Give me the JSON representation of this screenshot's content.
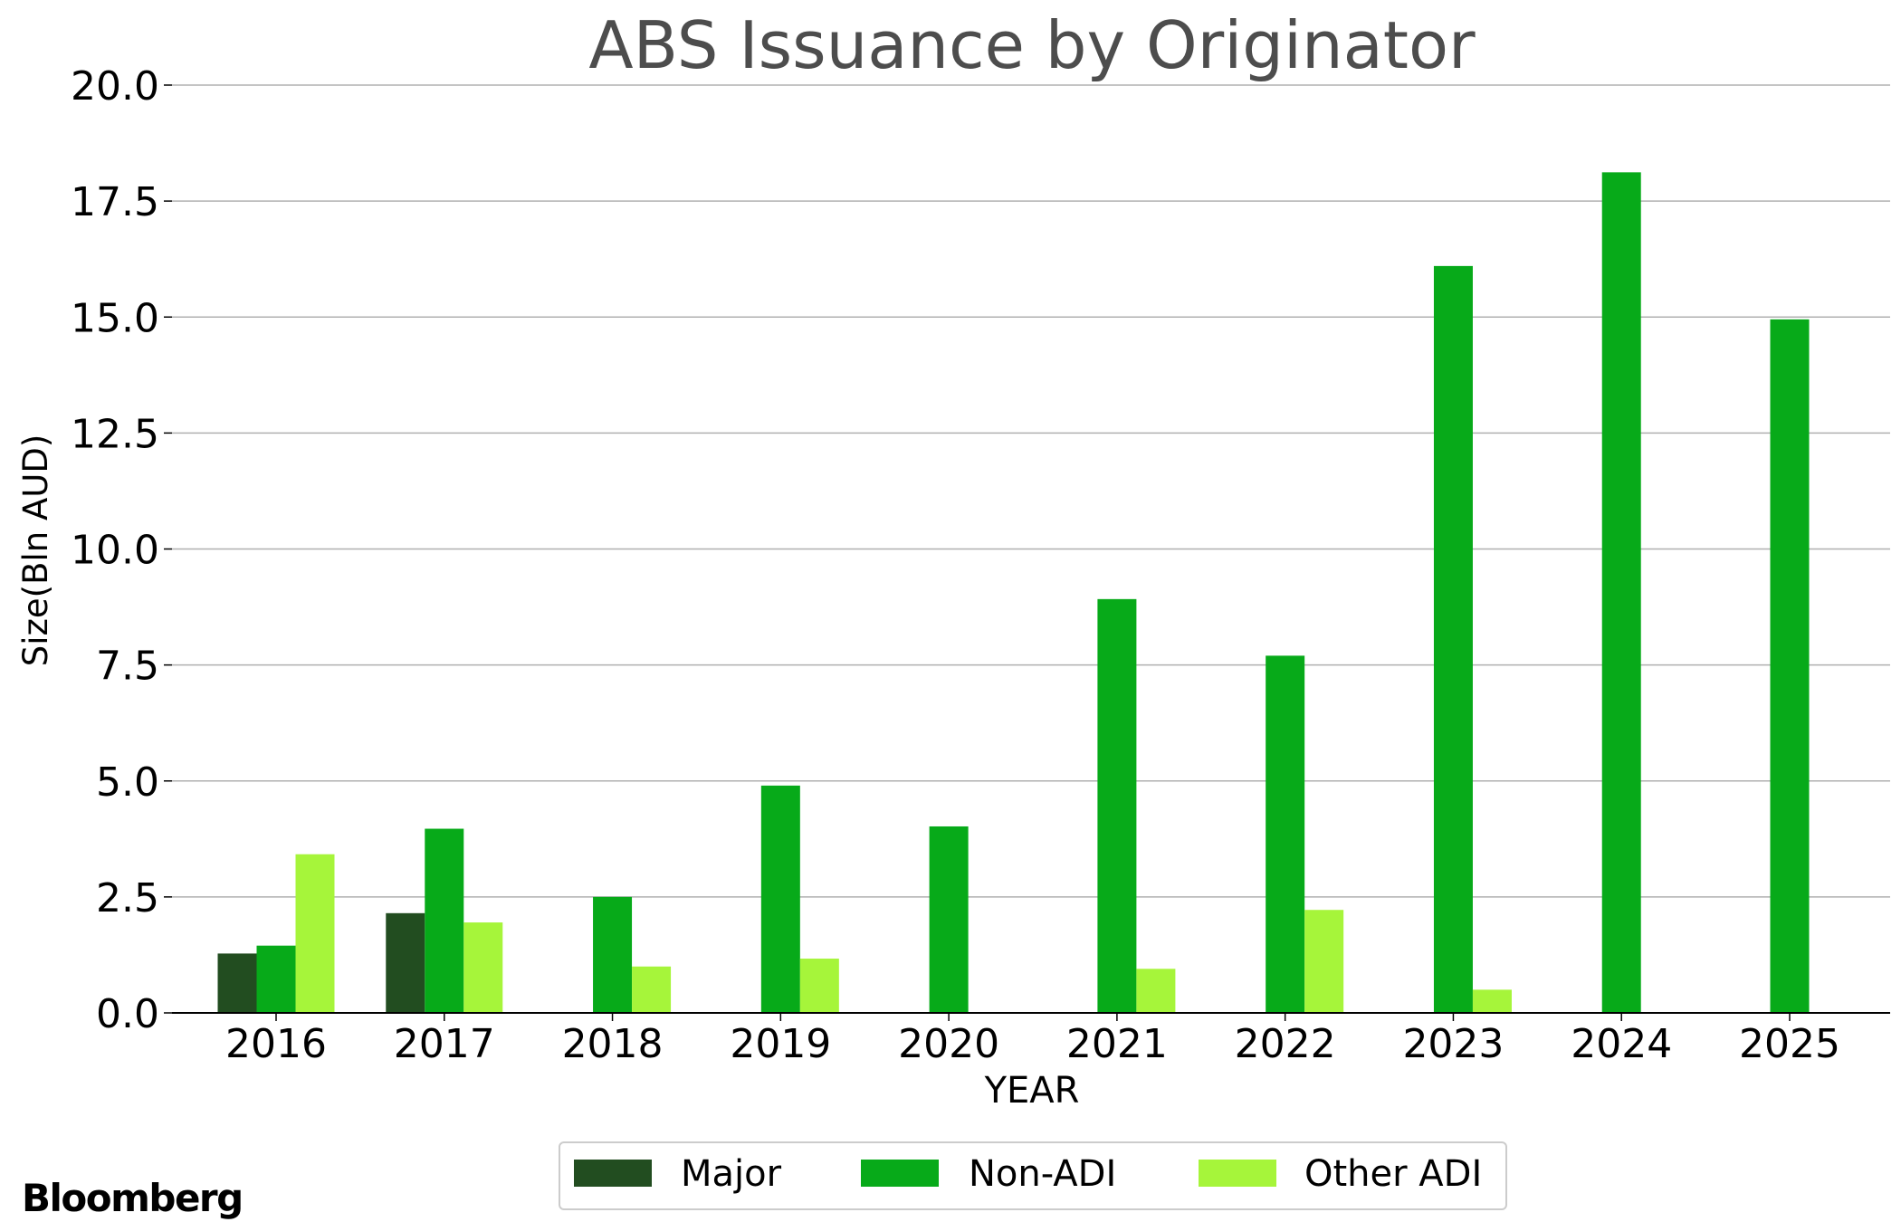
{
  "chart_data": {
    "type": "bar",
    "title": "ABS Issuance by Originator",
    "xlabel": "YEAR",
    "ylabel": "Size(Bln AUD)",
    "categories": [
      "2016",
      "2017",
      "2018",
      "2019",
      "2020",
      "2021",
      "2022",
      "2023",
      "2024",
      "2025"
    ],
    "ylim": [
      0,
      20
    ],
    "yticks": [
      "0.0",
      "2.5",
      "5.0",
      "7.5",
      "10.0",
      "12.5",
      "15.0",
      "17.5",
      "20.0"
    ],
    "grid": "horizontal",
    "legend_position": "bottom-center",
    "series": [
      {
        "name": "Major",
        "color": "#224d20",
        "values": [
          1.28,
          2.15,
          0,
          0,
          0,
          0,
          0,
          0,
          0,
          0
        ]
      },
      {
        "name": "Non-ADI",
        "color": "#07aa19",
        "values": [
          1.45,
          3.97,
          2.5,
          4.9,
          4.02,
          8.92,
          7.7,
          16.1,
          18.12,
          14.95
        ]
      },
      {
        "name": "Other ADI",
        "color": "#a6f53a",
        "values": [
          3.42,
          1.95,
          1.0,
          1.17,
          0,
          0.95,
          2.22,
          0.5,
          0,
          0
        ]
      }
    ]
  },
  "brand": "Bloomberg"
}
